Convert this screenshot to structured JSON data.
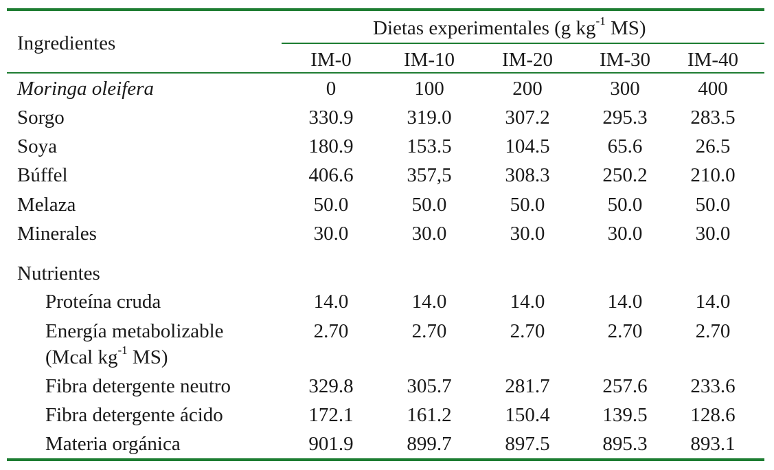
{
  "table": {
    "header": {
      "ingredients_label": "Ingredientes",
      "group_label_pre": "Dietas experimentales (g kg",
      "group_label_sup": "-1",
      "group_label_post": " MS)",
      "columns": [
        "IM-0",
        "IM-10",
        "IM-20",
        "IM-30",
        "IM-40"
      ]
    },
    "ingredients": [
      {
        "label": "Moringa oleifera",
        "values": [
          "0",
          "100",
          "200",
          "300",
          "400"
        ]
      },
      {
        "label": "Sorgo",
        "values": [
          "330.9",
          "319.0",
          "307.2",
          "295.3",
          "283.5"
        ]
      },
      {
        "label": "Soya",
        "values": [
          "180.9",
          "153.5",
          "104.5",
          "65.6",
          "26.5"
        ]
      },
      {
        "label": "Búffel",
        "values": [
          "406.6",
          "357,5",
          "308.3",
          "250.2",
          "210.0"
        ]
      },
      {
        "label": "Melaza",
        "values": [
          "50.0",
          "50.0",
          "50.0",
          "50.0",
          "50.0"
        ]
      },
      {
        "label": "Minerales",
        "values": [
          "30.0",
          "30.0",
          "30.0",
          "30.0",
          "30.0"
        ]
      }
    ],
    "nutrients_label": "Nutrientes",
    "nutrients": [
      {
        "label": "Proteína cruda",
        "values": [
          "14.0",
          "14.0",
          "14.0",
          "14.0",
          "14.0"
        ]
      },
      {
        "label": "Energía metabolizable",
        "label2_pre": "(Mcal kg",
        "label2_sup": "-1",
        "label2_post": " MS)",
        "values": [
          "2.70",
          "2.70",
          "2.70",
          "2.70",
          "2.70"
        ]
      },
      {
        "label": "Fibra detergente neutro",
        "values": [
          "329.8",
          "305.7",
          "281.7",
          "257.6",
          "233.6"
        ]
      },
      {
        "label": "Fibra detergente ácido",
        "values": [
          "172.1",
          "161.2",
          "150.4",
          "139.5",
          "128.6"
        ]
      },
      {
        "label": "Materia orgánica",
        "values": [
          "901.9",
          "899.7",
          "897.5",
          "895.3",
          "893.1"
        ]
      }
    ]
  },
  "colors": {
    "rule": "#1e7d32",
    "text": "#1a1a1a"
  }
}
